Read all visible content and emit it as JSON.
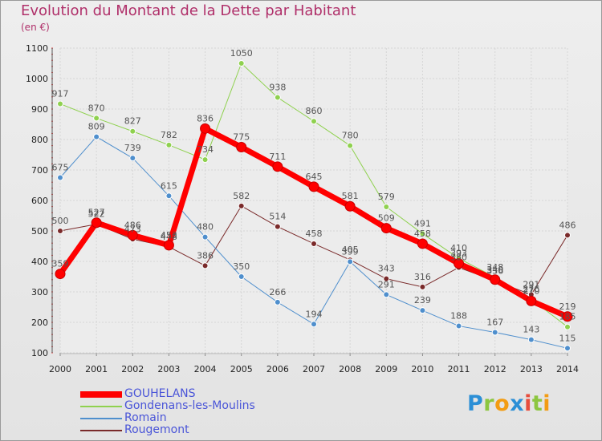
{
  "title": "Evolution du Montant de la Dette par Habitant",
  "unit": "(en €)",
  "logo": {
    "text": "Proxiti",
    "letter_colors": [
      "#2c8fd6",
      "#8cc63f",
      "#f39c12",
      "#2c8fd6",
      "#e74c3c",
      "#8cc63f",
      "#f39c12"
    ]
  },
  "chart_data": {
    "type": "line",
    "x": [
      "2000",
      "2001",
      "2002",
      "2003",
      "2004",
      "2005",
      "2006",
      "2007",
      "2008",
      "2009",
      "2010",
      "2011",
      "2012",
      "2013",
      "2014"
    ],
    "ylim": [
      100,
      1100
    ],
    "yticks": [
      100,
      200,
      300,
      400,
      500,
      600,
      700,
      800,
      900,
      1000,
      1100
    ],
    "grid": true,
    "legend": "bottom-left",
    "series": [
      {
        "name": "Rougemont",
        "color": "#7a2a2a",
        "width": 1,
        "values": [
          500,
          522,
          473,
          448,
          386,
          582,
          514,
          458,
          405,
          343,
          316,
          380,
          336,
          291,
          486
        ]
      },
      {
        "name": "Romain",
        "color": "#4f8fcd",
        "width": 1,
        "values": [
          675,
          809,
          739,
          615,
          480,
          350,
          266,
          194,
          399,
          291,
          239,
          188,
          167,
          143,
          115
        ]
      },
      {
        "name": "Gondenans-les-Moulins",
        "color": "#8fd14f",
        "width": 1,
        "values": [
          917,
          870,
          827,
          782,
          734,
          1050,
          938,
          860,
          780,
          579,
          491,
          410,
          348,
          276,
          185
        ]
      },
      {
        "name": "GOUHELANS",
        "color": "#ff0000",
        "width": 7,
        "values": [
          359,
          527,
          486,
          453,
          836,
          775,
          711,
          645,
          581,
          509,
          458,
          393,
          340,
          270,
          219
        ]
      }
    ]
  }
}
